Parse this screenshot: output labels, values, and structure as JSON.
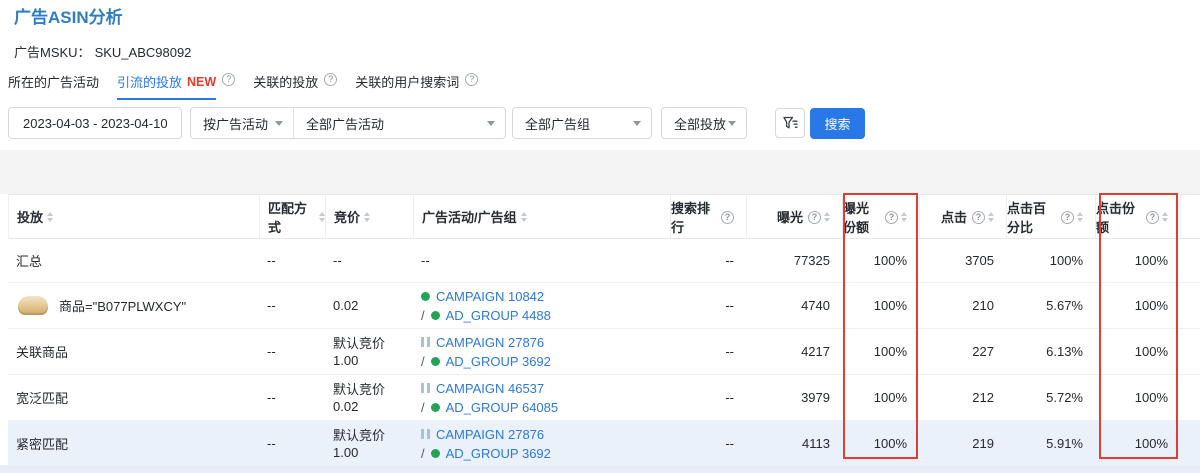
{
  "page": {
    "title": "广告ASIN分析",
    "msku_label": "广告MSKU：",
    "msku_value": "SKU_ABC98092"
  },
  "icons": {
    "help": "?"
  },
  "tabs": [
    {
      "label": "所在的广告活动"
    },
    {
      "label": "引流的投放",
      "badge": "NEW"
    },
    {
      "label": "关联的投放"
    },
    {
      "label": "关联的用户搜索词"
    }
  ],
  "filters": {
    "date_range": "2023-04-03 - 2023-04-10",
    "group_by": "按广告活动",
    "campaign": "全部广告活动",
    "ad_group": "全部广告组",
    "targeting": "全部投放",
    "search_label": "搜索"
  },
  "table": {
    "adgroup_prefix": "/",
    "columns": [
      {
        "label": "投放"
      },
      {
        "label": "匹配方式"
      },
      {
        "label": "竞价"
      },
      {
        "label": "广告活动/广告组"
      },
      {
        "label": "搜索排行"
      },
      {
        "label": "曝光"
      },
      {
        "label": "曝光份额",
        "boxed": true
      },
      {
        "label": "点击"
      },
      {
        "label": "点击百分比"
      },
      {
        "label": "点击份额",
        "boxed": true
      }
    ],
    "rows": [
      {
        "name": "汇总",
        "has_thumb": false,
        "match": "--",
        "bid_lines": [
          "--"
        ],
        "campaign": null,
        "campaign_placeholder": "--",
        "search_rank": "--",
        "impressions": "77325",
        "impression_share": "100%",
        "clicks": "3705",
        "click_pct": "100%",
        "click_share": "100%",
        "highlight": false
      },
      {
        "name": "商品=\"B077PLWXCY\"",
        "has_thumb": true,
        "match": "--",
        "bid_lines": [
          "0.02"
        ],
        "campaign": {
          "state": "active",
          "label": "CAMPAIGN 10842",
          "adgroup_label": "AD_GROUP 4488"
        },
        "search_rank": "--",
        "impressions": "4740",
        "impression_share": "100%",
        "clicks": "210",
        "click_pct": "5.67%",
        "click_share": "100%",
        "highlight": false
      },
      {
        "name": "关联商品",
        "has_thumb": false,
        "match": "--",
        "bid_lines": [
          "默认竞价",
          "1.00"
        ],
        "campaign": {
          "state": "paused",
          "label": "CAMPAIGN 27876",
          "adgroup_label": "AD_GROUP 3692"
        },
        "search_rank": "--",
        "impressions": "4217",
        "impression_share": "100%",
        "clicks": "227",
        "click_pct": "6.13%",
        "click_share": "100%",
        "highlight": false
      },
      {
        "name": "宽泛匹配",
        "has_thumb": false,
        "match": "--",
        "bid_lines": [
          "默认竞价",
          "0.02"
        ],
        "campaign": {
          "state": "paused",
          "label": "CAMPAIGN 46537",
          "adgroup_label": "AD_GROUP 64085"
        },
        "search_rank": "--",
        "impressions": "3979",
        "impression_share": "100%",
        "clicks": "212",
        "click_pct": "5.72%",
        "click_share": "100%",
        "highlight": false
      },
      {
        "name": "紧密匹配",
        "has_thumb": false,
        "match": "--",
        "bid_lines": [
          "默认竞价",
          "1.00"
        ],
        "campaign": {
          "state": "paused",
          "label": "CAMPAIGN 27876",
          "adgroup_label": "AD_GROUP 3692"
        },
        "search_rank": "--",
        "impressions": "4113",
        "impression_share": "100%",
        "clicks": "219",
        "click_pct": "5.91%",
        "click_share": "100%",
        "highlight": true
      }
    ]
  },
  "colors": {
    "title_blue": "#2f7dc0",
    "accent_blue": "#2878e8",
    "link_blue": "#2b79d8",
    "new_red": "#e8392e",
    "box_red": "#e23d32",
    "green_dot": "#23a454",
    "pause_gray": "#a9c0da",
    "highlight_row": "#eaf1fb"
  }
}
